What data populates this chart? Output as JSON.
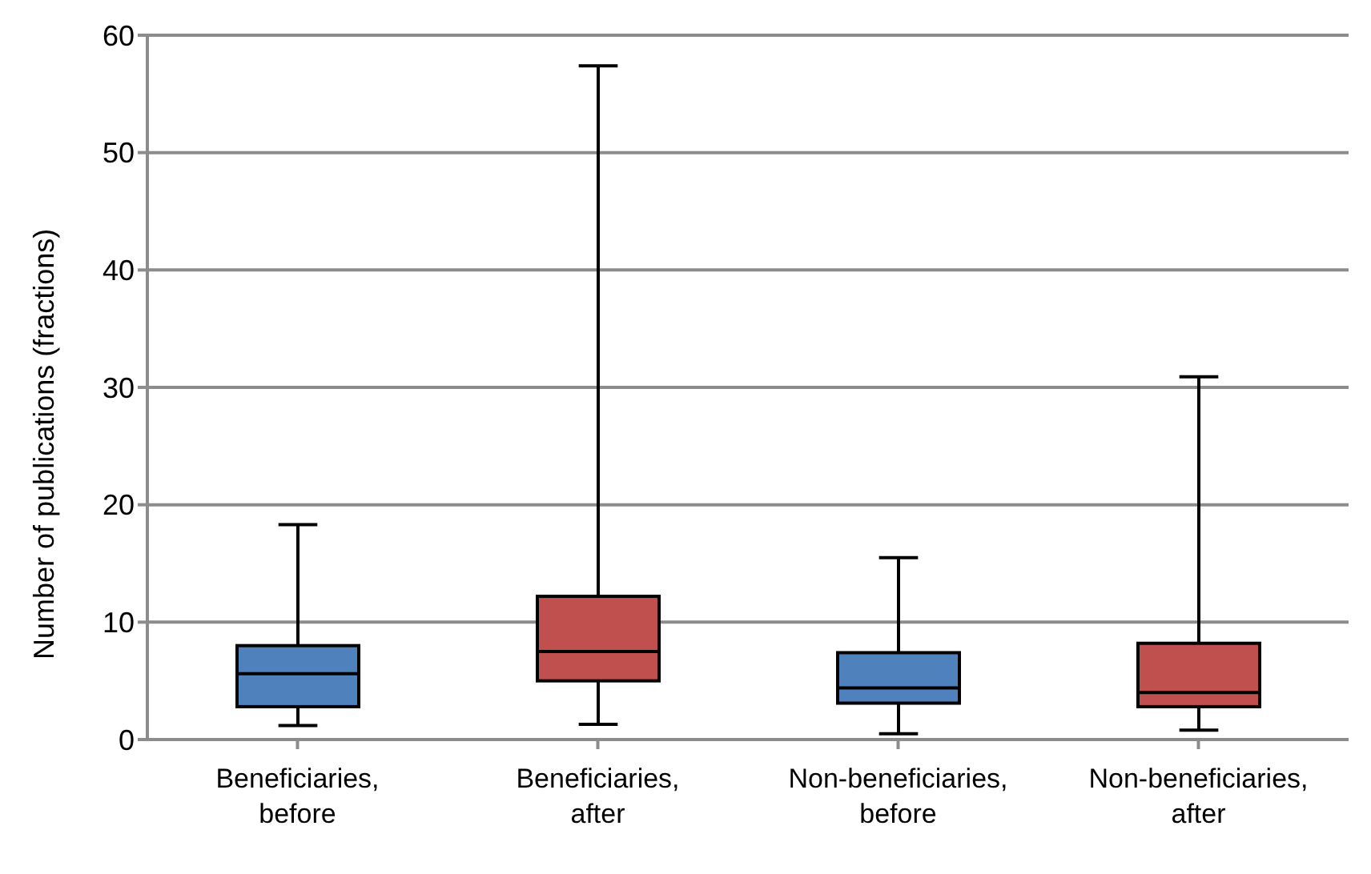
{
  "chart_data": {
    "type": "box",
    "ylabel": "Number of publications (fractions)",
    "categories": [
      "Beneficiaries, before",
      "Beneficiaries, after",
      "Non-beneficiaries, before",
      "Non-beneficiaries, after"
    ],
    "colors": [
      "#4f81bd",
      "#c0504d",
      "#4f81bd",
      "#c0504d"
    ],
    "boxes": [
      {
        "low": 1.2,
        "q1": 2.8,
        "median": 5.6,
        "q3": 8.0,
        "high": 18.3
      },
      {
        "low": 1.3,
        "q1": 5.0,
        "median": 7.5,
        "q3": 12.2,
        "high": 57.4
      },
      {
        "low": 0.5,
        "q1": 3.1,
        "median": 4.4,
        "q3": 7.4,
        "high": 15.5
      },
      {
        "low": 0.8,
        "q1": 2.8,
        "median": 4.0,
        "q3": 8.2,
        "high": 30.9
      }
    ],
    "ylim": [
      0,
      60
    ],
    "yticks": [
      0,
      10,
      20,
      30,
      40,
      50,
      60
    ],
    "grid": "y"
  }
}
